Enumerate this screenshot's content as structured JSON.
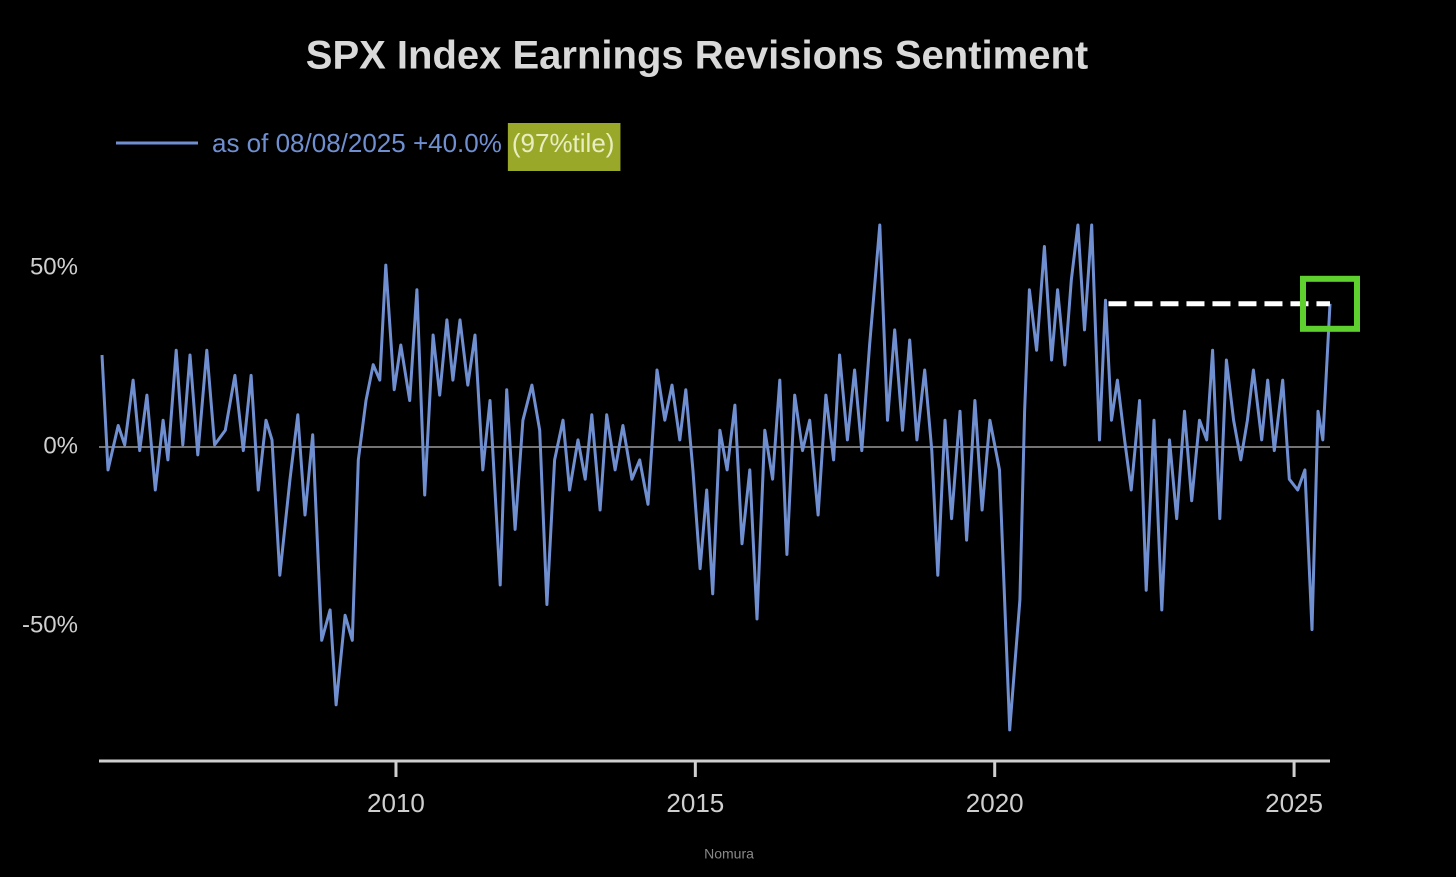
{
  "chart_data": {
    "type": "line",
    "title": "SPX Index Earnings Revisions Sentiment",
    "source": "Nomura",
    "x": [
      2005.09,
      2005.19,
      2005.36,
      2005.47,
      2005.61,
      2005.72,
      2005.84,
      2005.98,
      2006.11,
      2006.19,
      2006.33,
      2006.44,
      2006.56,
      2006.69,
      2006.84,
      2006.97,
      2007.15,
      2007.31,
      2007.45,
      2007.58,
      2007.7,
      2007.83,
      2007.93,
      2008.06,
      2008.23,
      2008.36,
      2008.48,
      2008.61,
      2008.76,
      2008.9,
      2009.0,
      2009.15,
      2009.27,
      2009.37,
      2009.5,
      2009.62,
      2009.73,
      2009.83,
      2009.97,
      2010.08,
      2010.23,
      2010.35,
      2010.48,
      2010.62,
      2010.73,
      2010.85,
      2010.95,
      2011.07,
      2011.2,
      2011.32,
      2011.45,
      2011.57,
      2011.74,
      2011.85,
      2011.99,
      2012.12,
      2012.27,
      2012.4,
      2012.52,
      2012.65,
      2012.79,
      2012.9,
      2013.04,
      2013.16,
      2013.27,
      2013.41,
      2013.52,
      2013.66,
      2013.79,
      2013.94,
      2014.07,
      2014.21,
      2014.36,
      2014.49,
      2014.61,
      2014.74,
      2014.84,
      2014.96,
      2015.08,
      2015.19,
      2015.29,
      2015.41,
      2015.53,
      2015.66,
      2015.78,
      2015.91,
      2016.03,
      2016.16,
      2016.29,
      2016.41,
      2016.53,
      2016.66,
      2016.79,
      2016.91,
      2017.05,
      2017.18,
      2017.31,
      2017.41,
      2017.54,
      2017.66,
      2017.78,
      2017.91,
      2018.08,
      2018.21,
      2018.33,
      2018.46,
      2018.58,
      2018.7,
      2018.83,
      2018.95,
      2019.05,
      2019.17,
      2019.28,
      2019.42,
      2019.53,
      2019.67,
      2019.79,
      2019.92,
      2020.08,
      2020.25,
      2020.42,
      2020.5,
      2020.58,
      2020.7,
      2020.83,
      2020.95,
      2021.05,
      2021.17,
      2021.28,
      2021.39,
      2021.5,
      2021.62,
      2021.75,
      2021.85,
      2021.95,
      2022.05,
      2022.17,
      2022.28,
      2022.42,
      2022.53,
      2022.66,
      2022.79,
      2022.92,
      2023.04,
      2023.17,
      2023.29,
      2023.42,
      2023.54,
      2023.64,
      2023.76,
      2023.87,
      2023.99,
      2024.11,
      2024.22,
      2024.32,
      2024.46,
      2024.56,
      2024.67,
      2024.81,
      2024.92,
      2025.06,
      2025.18,
      2025.3,
      2025.4,
      2025.48,
      2025.6
    ],
    "series": [
      {
        "name": "as of 08/08/2025 +40.0%",
        "color": "#6f8fd0",
        "values": [
          25.7,
          -6.4,
          6,
          0.6,
          18.7,
          -1,
          14.5,
          -12,
          7.5,
          -3.6,
          27,
          0.6,
          25.7,
          -2.2,
          27,
          0.6,
          4.7,
          20,
          -1,
          20,
          -12,
          7.5,
          2,
          -35.8,
          -9,
          9,
          -19,
          3.4,
          -54,
          -45.5,
          -72,
          -47,
          -54,
          -3.6,
          13,
          23,
          18.7,
          50.8,
          16,
          28.5,
          13,
          43.9,
          -13.4,
          31.3,
          14.5,
          35.5,
          18.7,
          35.5,
          17.3,
          31.3,
          -6.4,
          13,
          -38.5,
          16,
          -23,
          7.5,
          17.3,
          4.7,
          -44,
          -3.6,
          7.5,
          -12,
          2,
          -9,
          9,
          -17.6,
          9,
          -6.4,
          6,
          -9,
          -3.6,
          -16,
          21.5,
          7.5,
          17.3,
          2,
          16,
          -6.4,
          -34,
          -12,
          -41,
          4.7,
          -6.4,
          11.7,
          -27,
          -6.4,
          -48,
          4.7,
          -9,
          18.7,
          -30,
          14.5,
          -1,
          7.5,
          -19,
          14.5,
          -3.6,
          25.7,
          2,
          21.5,
          -1,
          28.5,
          62,
          7.5,
          32.7,
          4.7,
          29.9,
          2,
          21.5,
          -1,
          -35.8,
          7.5,
          -20,
          10,
          -26,
          13,
          -17.6,
          7.5,
          -6.4,
          -79,
          -42.7,
          10,
          43.9,
          27,
          56,
          24.3,
          43.9,
          22.9,
          46.6,
          62,
          32.7,
          62,
          2,
          41,
          7.5,
          18.7,
          2,
          -12,
          13,
          -40,
          7.5,
          -45.5,
          2,
          -20,
          10,
          -15,
          7.5,
          2,
          27,
          -20,
          24.3,
          7.5,
          -3.6,
          7.5,
          21.5,
          2,
          18.7,
          -1,
          18.7,
          -9,
          -12,
          -6.4,
          -51,
          10,
          2,
          40
        ]
      }
    ],
    "legend_note": "(97%tile)",
    "xlim": [
      2005.04,
      2025.6
    ],
    "ylim": [
      -87.7,
      70
    ],
    "xticks": [
      2010,
      2015,
      2020,
      2025
    ],
    "yticks": [
      {
        "value": -50,
        "label": "-50%"
      },
      {
        "value": 0,
        "label": "0%"
      },
      {
        "value": 50,
        "label": "50%"
      }
    ],
    "hline": 0,
    "reference_line": {
      "y": 40,
      "x": [
        2021.9,
        2025.6
      ],
      "color": "#ffffff"
    },
    "highlight_color": "#5fd12e"
  }
}
